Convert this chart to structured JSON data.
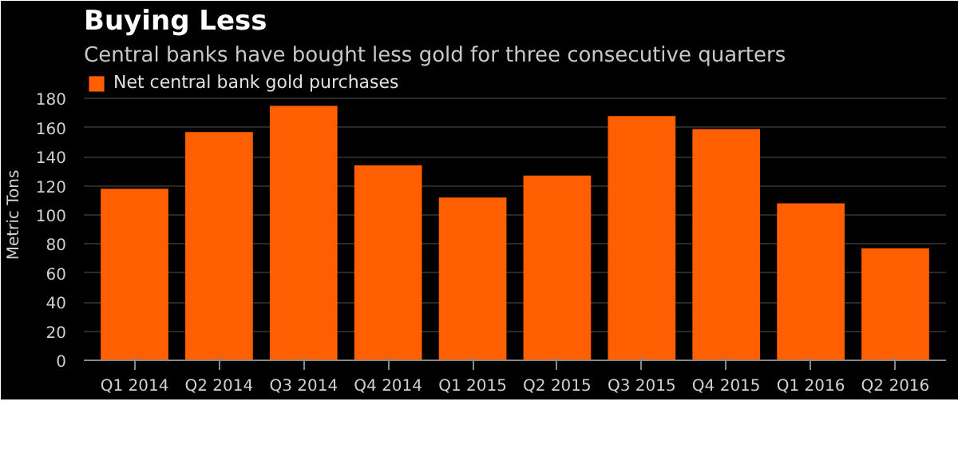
{
  "chart_data": {
    "type": "bar",
    "title": "Buying Less",
    "subtitle": "Central banks have bought less gold for three consecutive quarters",
    "ylabel": "Metric Tons",
    "categories": [
      "Q1 2014",
      "Q2 2014",
      "Q3 2014",
      "Q4 2014",
      "Q1 2015",
      "Q2 2015",
      "Q3 2015",
      "Q4 2015",
      "Q1 2016",
      "Q2 2016"
    ],
    "series": [
      {
        "name": "Net central bank gold purchases",
        "color": "#ff5f00",
        "values": [
          118,
          157,
          175,
          134,
          112,
          127,
          168,
          159,
          108,
          77
        ]
      }
    ],
    "ylim": [
      0,
      200
    ],
    "yticks": [
      0,
      20,
      40,
      60,
      80,
      100,
      120,
      140,
      160,
      180
    ],
    "grid": "y",
    "legend": "top left"
  }
}
